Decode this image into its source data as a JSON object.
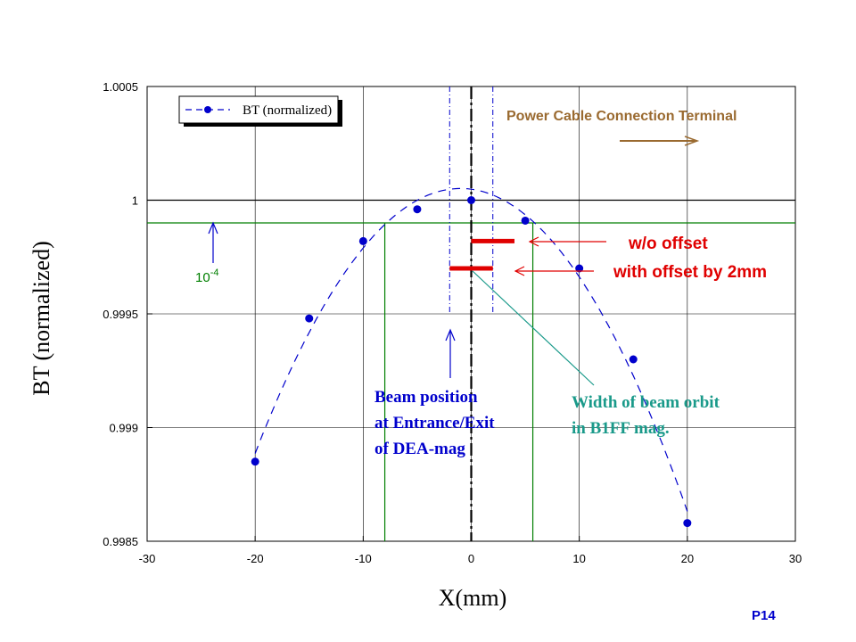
{
  "chart_data": {
    "type": "scatter",
    "xlabel": "X(mm)",
    "ylabel": "BT (normalized)",
    "xlim": [
      -30,
      30
    ],
    "ylim": [
      0.9985,
      1.0005
    ],
    "x_ticks": [
      -30,
      -20,
      -10,
      0,
      10,
      20,
      30
    ],
    "y_ticks": [
      0.9985,
      0.999,
      0.9995,
      1,
      1.0005
    ],
    "x_tick_labels": [
      "-30",
      "-20",
      "-10",
      "0",
      "10",
      "20",
      "30"
    ],
    "y_tick_labels": [
      "0.9985",
      "0.999",
      "0.9995",
      "1",
      "1.0005"
    ],
    "grid": true,
    "legend_position": "top-left",
    "series": [
      {
        "name": "BT (normalized)",
        "color": "#0000cc",
        "line_style": "dashed",
        "x": [
          -20,
          -15,
          -10,
          -5,
          0,
          5,
          10,
          15,
          20
        ],
        "y": [
          0.99885,
          0.99948,
          0.99982,
          0.99996,
          1.0,
          0.99991,
          0.9997,
          0.9993,
          0.99858
        ]
      }
    ],
    "reference_lines": {
      "horizontal_black": 1.0,
      "horizontal_green": 0.9999,
      "vertical_green": [
        -8,
        5.7
      ],
      "vertical_center_dashdot": 0,
      "vertical_blue_dashed": [
        -2,
        2
      ]
    },
    "red_bars": [
      {
        "label": "w/o offset",
        "x0": 0,
        "x1": 4,
        "y": 0.99982
      },
      {
        "label": "with offset by 2mm",
        "x0": -2,
        "x1": 2,
        "y": 0.9997
      }
    ],
    "annotations": {
      "power_cable": "Power Cable Connection Terminal",
      "wo_offset": "w/o offset",
      "with_offset": "with offset by 2mm",
      "ten_minus4_base": "10",
      "ten_minus4_exp": "-4",
      "beam_position": [
        "Beam position",
        "at Entrance/Exit",
        "of DEA-mag"
      ],
      "beam_width": [
        "Width of beam orbit",
        "in B1FF mag."
      ]
    }
  },
  "page": {
    "page_number": "P14"
  },
  "colors": {
    "axis": "#000000",
    "grid": "#000000",
    "green": "#007f00",
    "blue": "#0000cc",
    "red": "#e00000",
    "brown": "#9a6a30",
    "teal": "#1a9a8a"
  }
}
